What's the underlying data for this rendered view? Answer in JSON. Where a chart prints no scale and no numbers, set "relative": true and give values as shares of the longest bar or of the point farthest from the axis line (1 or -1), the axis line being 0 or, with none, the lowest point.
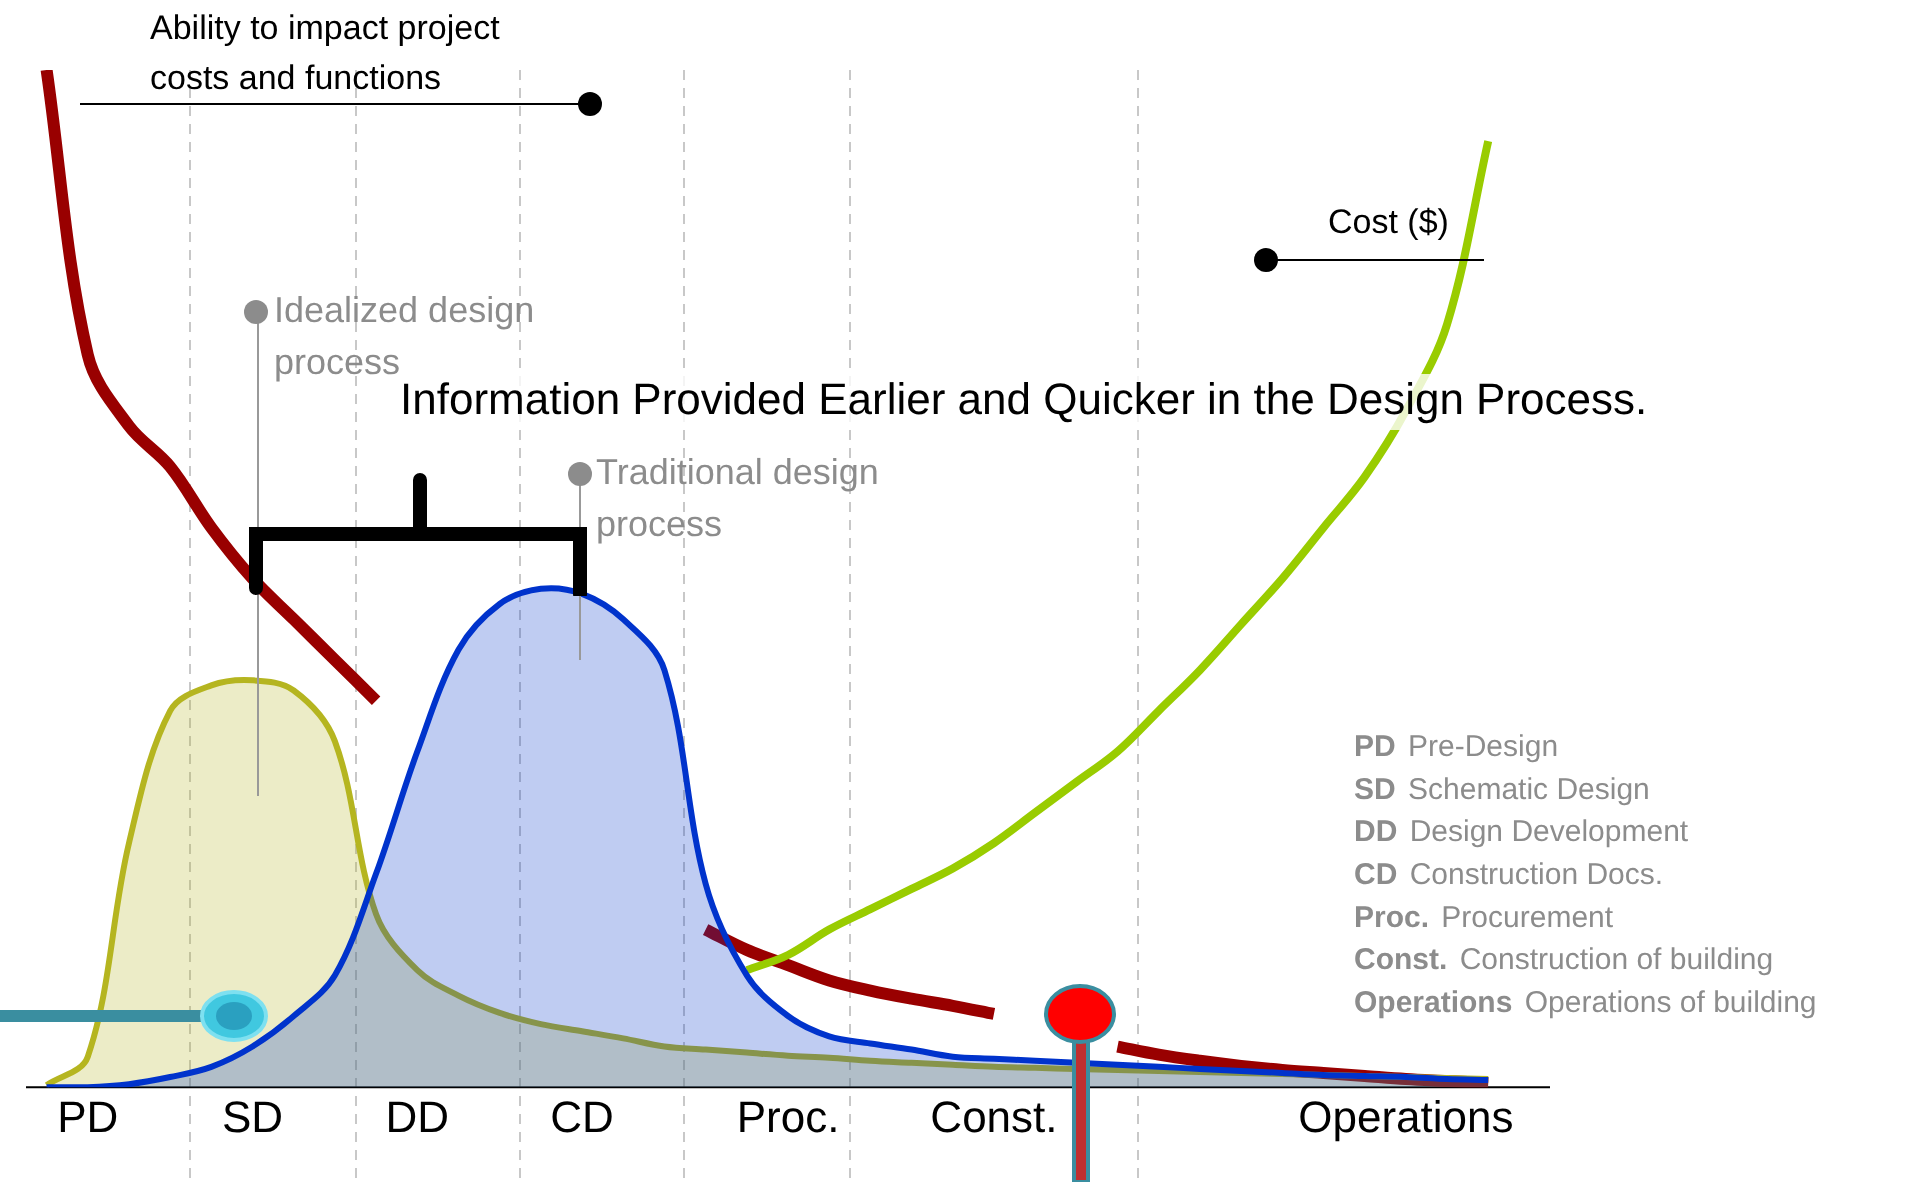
{
  "chart_data": {
    "type": "line",
    "relative": true,
    "categories": [
      null,
      "PD",
      null,
      null,
      null,
      "SD",
      null,
      null,
      null,
      "DD",
      null,
      null,
      null,
      "CD",
      null,
      null,
      null,
      null,
      "Proc.",
      null,
      null,
      null,
      null,
      "Const.",
      null,
      null,
      null,
      null,
      null,
      null,
      null,
      null,
      null,
      "Operations",
      null,
      null,
      null
    ],
    "tick_labels": "x",
    "grid": false,
    "legend": false,
    "series": [
      {
        "name": "Ability to impact project costs and functions",
        "color": "#990000",
        "values": [
          1.0,
          0.72,
          0.65,
          0.61,
          0.55,
          0.5,
          0.46,
          0.42,
          0.38,
          null,
          null,
          null,
          null,
          null,
          null,
          null,
          0.155,
          0.135,
          0.12,
          0.105,
          0.095,
          0.087,
          0.08,
          0.072,
          null,
          null,
          0.04,
          0.032,
          0.026,
          0.021,
          0.017,
          0.014,
          0.011,
          0.008,
          0.006,
          0.004,
          null
        ]
      },
      {
        "name": "Cost ($)",
        "color": "#99cc00",
        "values": [
          null,
          null,
          null,
          null,
          null,
          null,
          null,
          null,
          null,
          null,
          null,
          null,
          null,
          null,
          null,
          null,
          null,
          0.115,
          0.13,
          0.155,
          0.175,
          0.195,
          0.215,
          0.24,
          0.27,
          0.3,
          0.33,
          0.37,
          0.41,
          0.455,
          0.5,
          0.55,
          0.6,
          0.665,
          0.75,
          0.93,
          null
        ]
      },
      {
        "name": "Idealized design process",
        "type": "area",
        "color": "#b5b520",
        "values": [
          0.002,
          0.03,
          0.24,
          0.37,
          0.395,
          0.4,
          0.39,
          0.34,
          0.17,
          0.115,
          0.09,
          0.073,
          0.062,
          0.055,
          0.048,
          0.04,
          0.037,
          0.034,
          0.031,
          0.029,
          0.026,
          0.024,
          0.022,
          0.02,
          0.019,
          0.018,
          0.017,
          0.016,
          0.015,
          0.014,
          0.013,
          0.012,
          0.011,
          0.01,
          0.009,
          0.008,
          null
        ]
      },
      {
        "name": "Traditional design process",
        "type": "area",
        "color": "#0033cc",
        "values": [
          0.0,
          0.0,
          0.003,
          0.01,
          0.02,
          0.04,
          0.07,
          0.11,
          0.21,
          0.33,
          0.43,
          0.475,
          0.49,
          0.485,
          0.46,
          0.41,
          0.2,
          0.11,
          0.07,
          0.05,
          0.043,
          0.037,
          0.03,
          0.028,
          0.026,
          0.024,
          0.022,
          0.02,
          0.018,
          0.016,
          0.014,
          0.012,
          0.011,
          0.01,
          0.008,
          0.007,
          null
        ]
      }
    ],
    "annotations": [
      "Information Provided Earlier and Quicker in the Design Process.",
      "PD Pre-Design",
      "SD Schematic Design",
      "DD Design Development",
      "CD Construction Docs.",
      "Proc. Procurement",
      "Const. Construction of building",
      "Operations Operations of building"
    ]
  }
}
